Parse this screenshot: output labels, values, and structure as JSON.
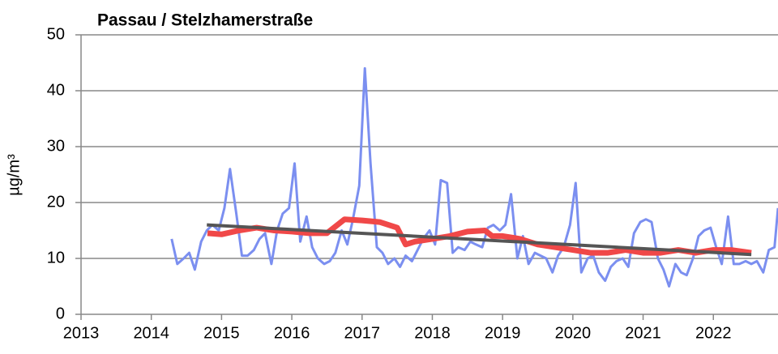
{
  "chart_data": {
    "type": "line",
    "title": "Passau / Stelzhamerstraße",
    "ylabel": "µg/m³",
    "xlim": [
      2013,
      2022.92
    ],
    "xticks": [
      2013,
      2014,
      2015,
      2016,
      2017,
      2018,
      2019,
      2020,
      2021,
      2022
    ],
    "ylim": [
      0,
      50
    ],
    "yticks": [
      0,
      10,
      20,
      30,
      40,
      50
    ],
    "grid": true,
    "series": [
      {
        "color": "#7b8ff0",
        "width": 3,
        "x": [
          2014.29,
          2014.37,
          2014.46,
          2014.54,
          2014.62,
          2014.71,
          2014.79,
          2014.87,
          2014.96,
          2015.04,
          2015.12,
          2015.21,
          2015.29,
          2015.37,
          2015.46,
          2015.54,
          2015.62,
          2015.71,
          2015.79,
          2015.87,
          2015.96,
          2016.04,
          2016.12,
          2016.21,
          2016.29,
          2016.37,
          2016.46,
          2016.54,
          2016.62,
          2016.71,
          2016.79,
          2016.87,
          2016.96,
          2017.04,
          2017.12,
          2017.21,
          2017.29,
          2017.37,
          2017.46,
          2017.54,
          2017.62,
          2017.71,
          2017.79,
          2017.87,
          2017.96,
          2018.04,
          2018.12,
          2018.21,
          2018.29,
          2018.37,
          2018.46,
          2018.54,
          2018.62,
          2018.71,
          2018.79,
          2018.87,
          2018.96,
          2019.04,
          2019.12,
          2019.21,
          2019.29,
          2019.37,
          2019.46,
          2019.54,
          2019.62,
          2019.71,
          2019.79,
          2019.87,
          2019.96,
          2020.04,
          2020.12,
          2020.21,
          2020.29,
          2020.37,
          2020.46,
          2020.54,
          2020.62,
          2020.71,
          2020.79,
          2020.87,
          2020.96,
          2021.04,
          2021.12,
          2021.21,
          2021.29,
          2021.37,
          2021.46,
          2021.54,
          2021.62,
          2021.71,
          2021.79,
          2021.87,
          2021.96,
          2022.04,
          2022.12,
          2022.21,
          2022.29,
          2022.37,
          2022.46,
          2022.54,
          2022.62,
          2022.71,
          2022.79,
          2022.87,
          2022.92
        ],
        "values": [
          13.5,
          9,
          10,
          11,
          8,
          13,
          15,
          16,
          15,
          19,
          26,
          18,
          10.5,
          10.5,
          11.5,
          13.5,
          14.5,
          9,
          15,
          18,
          19,
          27,
          13,
          17.5,
          12,
          10,
          9,
          9.5,
          11,
          15,
          12.5,
          17,
          23,
          44,
          27,
          12,
          11,
          9,
          10,
          8.5,
          10.5,
          9.5,
          11.5,
          13.5,
          15,
          12.5,
          24,
          23.5,
          11,
          12,
          11.5,
          13,
          12.5,
          12,
          15.5,
          16,
          15,
          16,
          21.5,
          10,
          14,
          9,
          11,
          10.5,
          10,
          7.5,
          10.5,
          12,
          16,
          23.5,
          7.5,
          10,
          10.5,
          7.5,
          6,
          8.5,
          9.5,
          10,
          8.5,
          14.5,
          16.5,
          17,
          16.5,
          10,
          8,
          5,
          9,
          7.5,
          7,
          10,
          14,
          15,
          15.5,
          12,
          9,
          17.5,
          9,
          9,
          9.5,
          9,
          9.5,
          7.5,
          11.5,
          12,
          19
        ]
      },
      {
        "color": "#f04848",
        "width": 7,
        "x": [
          2014.8,
          2015.0,
          2015.25,
          2015.5,
          2015.75,
          2016.0,
          2016.25,
          2016.5,
          2016.75,
          2017.0,
          2017.25,
          2017.5,
          2017.62,
          2017.75,
          2018.0,
          2018.25,
          2018.5,
          2018.75,
          2018.85,
          2019.0,
          2019.25,
          2019.5,
          2019.75,
          2020.0,
          2020.25,
          2020.5,
          2020.75,
          2021.0,
          2021.25,
          2021.5,
          2021.75,
          2022.0,
          2022.25,
          2022.54
        ],
        "values": [
          14.5,
          14.3,
          15,
          15.5,
          15,
          14.8,
          14.5,
          14.5,
          17,
          16.8,
          16.5,
          15.5,
          12.5,
          13,
          13.5,
          14,
          14.8,
          15,
          14,
          14,
          13.5,
          12.5,
          12,
          11.5,
          11,
          11,
          11.5,
          11,
          11,
          11.5,
          11,
          11.5,
          11.5,
          11
        ]
      },
      {
        "color": "#555555",
        "width": 4,
        "x": [
          2014.79,
          2022.54
        ],
        "values": [
          16,
          10.7
        ]
      }
    ]
  }
}
